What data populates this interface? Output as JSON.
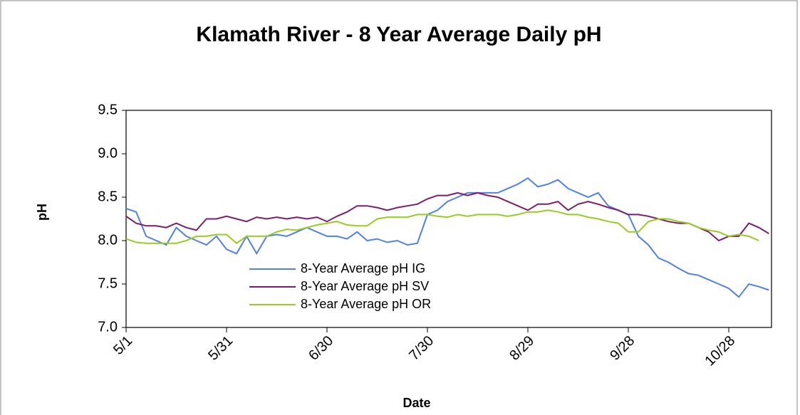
{
  "chart_data": {
    "type": "line",
    "title": "Klamath River - 8 Year Average Daily  pH",
    "x_label": "Date",
    "y_label": "pH",
    "x": [
      "5/1",
      "5/4",
      "5/7",
      "5/10",
      "5/13",
      "5/16",
      "5/19",
      "5/22",
      "5/25",
      "5/28",
      "5/31",
      "6/3",
      "6/6",
      "6/9",
      "6/12",
      "6/15",
      "6/18",
      "6/21",
      "6/24",
      "6/27",
      "6/30",
      "7/3",
      "7/6",
      "7/9",
      "7/12",
      "7/15",
      "7/18",
      "7/21",
      "7/24",
      "7/27",
      "7/30",
      "8/2",
      "8/5",
      "8/8",
      "8/11",
      "8/14",
      "8/17",
      "8/20",
      "8/23",
      "8/26",
      "8/29",
      "9/1",
      "9/4",
      "9/7",
      "9/10",
      "9/13",
      "9/16",
      "9/19",
      "9/22",
      "9/25",
      "9/28",
      "10/1",
      "10/4",
      "10/7",
      "10/10",
      "10/13",
      "10/16",
      "10/19",
      "10/22",
      "10/25",
      "10/28",
      "10/31",
      "11/3",
      "11/6",
      "11/9"
    ],
    "xticks": [
      "5/1",
      "5/31",
      "6/30",
      "7/30",
      "8/29",
      "9/28",
      "10/28"
    ],
    "ylim": [
      7.0,
      9.5
    ],
    "yticks": [
      {
        "value": 7.0,
        "label": "7.0"
      },
      7.5,
      {
        "value": 8.0,
        "label": "8.0"
      },
      8.5,
      {
        "value": 9.0,
        "label": "9.0"
      },
      9.5
    ],
    "series": [
      {
        "name": "8-Year Average pH IG",
        "color": "#4f81e6",
        "values": [
          8.37,
          8.33,
          8.05,
          8.0,
          7.95,
          8.15,
          8.05,
          8.0,
          7.95,
          8.05,
          7.9,
          7.85,
          8.05,
          7.85,
          8.05,
          8.07,
          8.05,
          8.1,
          8.15,
          8.1,
          8.05,
          8.05,
          8.02,
          8.1,
          8.0,
          8.02,
          7.98,
          8.0,
          7.95,
          7.97,
          8.3,
          8.35,
          8.45,
          8.5,
          8.55,
          8.55,
          8.55,
          8.55,
          8.6,
          8.65,
          8.72,
          8.62,
          8.65,
          8.7,
          8.6,
          8.55,
          8.5,
          8.55,
          8.4,
          8.35,
          8.3,
          8.05,
          7.95,
          7.8,
          7.75,
          7.68,
          7.62,
          7.6,
          7.55,
          7.5,
          7.45,
          7.35,
          7.5,
          7.47,
          7.43
        ]
      },
      {
        "name": "8-Year Average pH SV",
        "color": "#7b1d6e",
        "values": [
          8.28,
          8.2,
          8.17,
          8.17,
          8.15,
          8.2,
          8.15,
          8.12,
          8.25,
          8.25,
          8.28,
          8.25,
          8.22,
          8.27,
          8.25,
          8.27,
          8.25,
          8.27,
          8.25,
          8.27,
          8.22,
          8.28,
          8.33,
          8.4,
          8.4,
          8.38,
          8.35,
          8.38,
          8.4,
          8.42,
          8.48,
          8.52,
          8.52,
          8.55,
          8.52,
          8.55,
          8.52,
          8.5,
          8.45,
          8.4,
          8.35,
          8.42,
          8.42,
          8.45,
          8.35,
          8.42,
          8.45,
          8.42,
          8.38,
          8.35,
          8.3,
          8.3,
          8.28,
          8.25,
          8.22,
          8.2,
          8.2,
          8.15,
          8.1,
          8.0,
          8.05,
          8.05,
          8.2,
          8.15,
          8.08
        ]
      },
      {
        "name": "8-Year Average pH OR",
        "color": "#99cc22",
        "values": [
          8.02,
          7.98,
          7.97,
          7.97,
          7.97,
          7.97,
          8.0,
          8.05,
          8.05,
          8.07,
          8.07,
          7.97,
          8.05,
          8.05,
          8.05,
          8.1,
          8.13,
          8.12,
          8.15,
          8.18,
          8.2,
          8.22,
          8.18,
          8.17,
          8.17,
          8.25,
          8.27,
          8.27,
          8.27,
          8.3,
          8.3,
          8.28,
          8.27,
          8.3,
          8.28,
          8.3,
          8.3,
          8.3,
          8.28,
          8.3,
          8.33,
          8.33,
          8.35,
          8.33,
          8.3,
          8.3,
          8.27,
          8.25,
          8.22,
          8.2,
          8.1,
          8.1,
          8.22,
          8.25,
          8.25,
          8.22,
          8.2,
          8.15,
          8.12,
          8.1,
          8.05,
          8.07,
          8.05,
          8.0,
          null
        ]
      }
    ]
  }
}
